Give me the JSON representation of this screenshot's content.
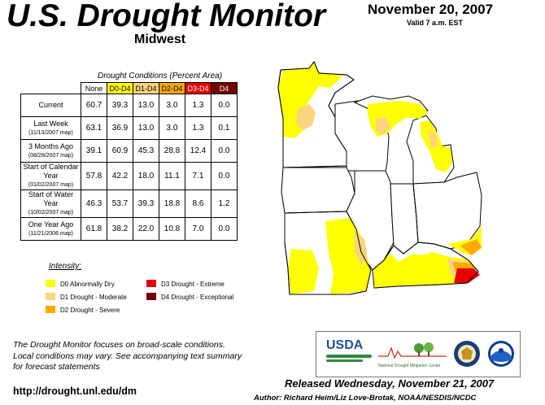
{
  "header": {
    "title": "U.S. Drought Monitor",
    "region": "Midwest",
    "date": "November 20, 2007",
    "valid": "Valid 7 a.m. EST"
  },
  "table": {
    "caption": "Drought Conditions (Percent Area)",
    "columns": [
      "None",
      "D0-D4",
      "D1-D4",
      "D2-D4",
      "D3-D4",
      "D4"
    ],
    "column_colors": [
      "#ffffff",
      "#ffff00",
      "#fcd37f",
      "#ffaa00",
      "#e60000",
      "#730000"
    ],
    "rows": [
      {
        "label": "Current",
        "sub": "",
        "values": [
          "60.7",
          "39.3",
          "13.0",
          "3.0",
          "1.3",
          "0.0"
        ]
      },
      {
        "label": "Last Week",
        "sub": "(11/13/2007 map)",
        "values": [
          "63.1",
          "36.9",
          "13.0",
          "3.0",
          "1.3",
          "0.1"
        ]
      },
      {
        "label": "3 Months Ago",
        "sub": "(08/28/2007 map)",
        "values": [
          "39.1",
          "60.9",
          "45.3",
          "28.8",
          "12.4",
          "0.0"
        ]
      },
      {
        "label": "Start of Calendar Year",
        "sub": "(01/02/2007 map)",
        "values": [
          "57.8",
          "42.2",
          "18.0",
          "11.1",
          "7.1",
          "0.0"
        ]
      },
      {
        "label": "Start of Water Year",
        "sub": "(10/02/2007 map)",
        "values": [
          "46.3",
          "53.7",
          "39.3",
          "18.8",
          "8.6",
          "1.2"
        ]
      },
      {
        "label": "One Year Ago",
        "sub": "(11/21/2006 map)",
        "values": [
          "61.8",
          "38.2",
          "22.0",
          "10.8",
          "7.0",
          "0.0"
        ]
      }
    ]
  },
  "legend": {
    "title": "Intensity:",
    "items": [
      {
        "label": "D0 Abnormally Dry",
        "color": "#ffff00"
      },
      {
        "label": "D1 Drought - Moderate",
        "color": "#fcd37f"
      },
      {
        "label": "D2 Drought - Severe",
        "color": "#ffaa00"
      },
      {
        "label": "D3 Drought - Extreme",
        "color": "#e60000"
      },
      {
        "label": "D4 Drought - Exceptional",
        "color": "#730000"
      }
    ]
  },
  "footer": {
    "note_lines": [
      "The Drought Monitor focuses on broad-scale conditions.",
      "Local conditions may vary. See accompanying text summary",
      "for forecast statements"
    ],
    "url": "http://drought.unl.edu/dm",
    "released": "Released Wednesday, November 21, 2007",
    "author": "Author: Richard Heim/Liz Love-Brotak, NOAA/NESDIS/NCDC"
  },
  "logos": {
    "usda": "USDA",
    "ndmc": "National Drought Mitigation Center"
  }
}
